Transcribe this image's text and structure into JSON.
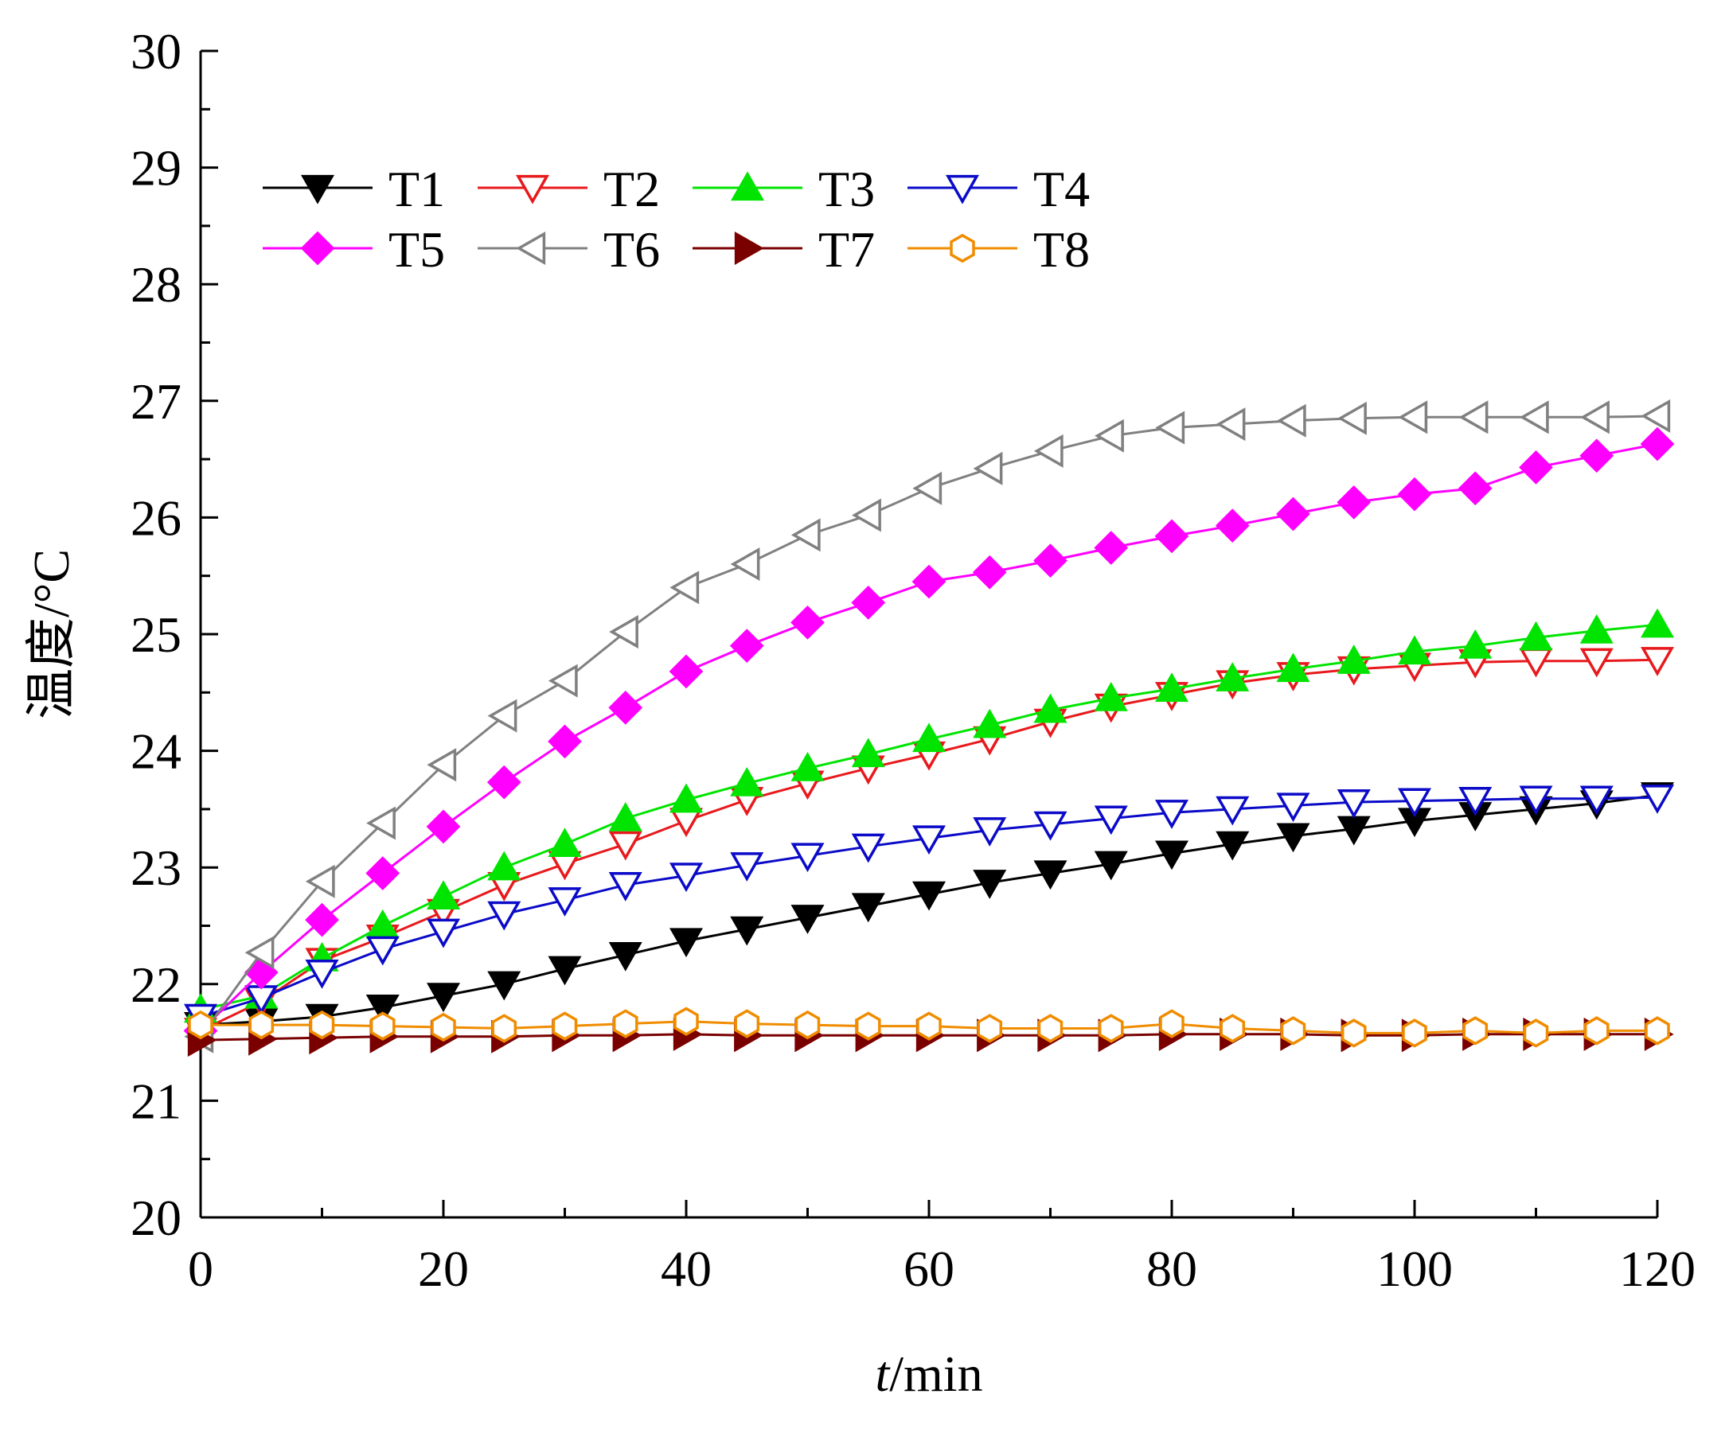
{
  "chart_data": {
    "type": "line",
    "title": "",
    "xlabel": {
      "italic": "t",
      "rest": "/min"
    },
    "ylabel": "温度/°C",
    "xlim": [
      0,
      120
    ],
    "ylim": [
      20,
      30
    ],
    "x_ticks": [
      0,
      20,
      40,
      60,
      80,
      100,
      120
    ],
    "y_ticks": [
      20,
      21,
      22,
      23,
      24,
      25,
      26,
      27,
      28,
      29,
      30
    ],
    "x_tick_labels": [
      "0",
      "20",
      "40",
      "60",
      "80",
      "100",
      "120"
    ],
    "y_tick_labels": [
      "20",
      "21",
      "22",
      "23",
      "24",
      "25",
      "26",
      "27",
      "28",
      "29",
      "30"
    ],
    "grid": false,
    "legend_position": "top-left",
    "x": [
      0,
      5,
      10,
      15,
      20,
      25,
      30,
      35,
      40,
      45,
      50,
      55,
      60,
      65,
      70,
      75,
      80,
      85,
      90,
      95,
      100,
      105,
      110,
      115,
      120
    ],
    "series": [
      {
        "name": "T1",
        "color": "#000000",
        "marker": "triangle-down",
        "filled": true,
        "values": [
          21.65,
          21.68,
          21.72,
          21.8,
          21.9,
          22.0,
          22.13,
          22.25,
          22.37,
          22.47,
          22.57,
          22.67,
          22.77,
          22.87,
          22.95,
          23.03,
          23.12,
          23.2,
          23.27,
          23.33,
          23.4,
          23.45,
          23.5,
          23.55,
          23.62
        ]
      },
      {
        "name": "T2",
        "color": "#e8191c",
        "marker": "triangle-down",
        "filled": false,
        "values": [
          21.6,
          21.85,
          22.2,
          22.4,
          22.62,
          22.85,
          23.03,
          23.2,
          23.4,
          23.58,
          23.72,
          23.85,
          23.97,
          24.1,
          24.25,
          24.38,
          24.48,
          24.58,
          24.65,
          24.7,
          24.73,
          24.76,
          24.77,
          24.77,
          24.78
        ]
      },
      {
        "name": "T3",
        "color": "#00e400",
        "marker": "triangle-up",
        "filled": true,
        "values": [
          21.78,
          21.9,
          22.22,
          22.5,
          22.75,
          23.0,
          23.2,
          23.42,
          23.58,
          23.72,
          23.85,
          23.97,
          24.1,
          24.22,
          24.35,
          24.45,
          24.53,
          24.62,
          24.7,
          24.77,
          24.85,
          24.9,
          24.97,
          25.03,
          25.08
        ]
      },
      {
        "name": "T4",
        "color": "#0a0ac8",
        "marker": "triangle-down",
        "filled": false,
        "values": [
          21.72,
          21.88,
          22.1,
          22.3,
          22.45,
          22.6,
          22.72,
          22.85,
          22.93,
          23.02,
          23.1,
          23.18,
          23.25,
          23.32,
          23.37,
          23.42,
          23.47,
          23.5,
          23.53,
          23.56,
          23.57,
          23.58,
          23.59,
          23.59,
          23.6
        ]
      },
      {
        "name": "T5",
        "color": "#ff00ff",
        "marker": "diamond",
        "filled": true,
        "values": [
          21.6,
          22.1,
          22.55,
          22.95,
          23.35,
          23.73,
          24.08,
          24.37,
          24.68,
          24.9,
          25.1,
          25.27,
          25.45,
          25.53,
          25.63,
          25.74,
          25.84,
          25.93,
          26.03,
          26.13,
          26.2,
          26.25,
          26.43,
          26.53,
          26.63
        ]
      },
      {
        "name": "T6",
        "color": "#808080",
        "marker": "triangle-left",
        "filled": false,
        "values": [
          21.55,
          22.27,
          22.88,
          23.38,
          23.88,
          24.3,
          24.6,
          25.02,
          25.4,
          25.6,
          25.85,
          26.02,
          26.25,
          26.42,
          26.57,
          26.7,
          26.77,
          26.8,
          26.83,
          26.85,
          26.86,
          26.86,
          26.86,
          26.86,
          26.87
        ]
      },
      {
        "name": "T7",
        "color": "#7a0000",
        "marker": "triangle-right",
        "filled": true,
        "values": [
          21.52,
          21.53,
          21.54,
          21.55,
          21.55,
          21.55,
          21.56,
          21.56,
          21.57,
          21.56,
          21.56,
          21.56,
          21.56,
          21.56,
          21.56,
          21.56,
          21.57,
          21.57,
          21.57,
          21.56,
          21.56,
          21.57,
          21.57,
          21.57,
          21.57
        ]
      },
      {
        "name": "T8",
        "color": "#f08c00",
        "marker": "hexagon",
        "filled": false,
        "values": [
          21.65,
          21.65,
          21.65,
          21.64,
          21.63,
          21.62,
          21.64,
          21.66,
          21.68,
          21.66,
          21.65,
          21.64,
          21.64,
          21.62,
          21.62,
          21.62,
          21.66,
          21.62,
          21.6,
          21.58,
          21.58,
          21.6,
          21.58,
          21.6,
          21.6
        ]
      }
    ]
  }
}
